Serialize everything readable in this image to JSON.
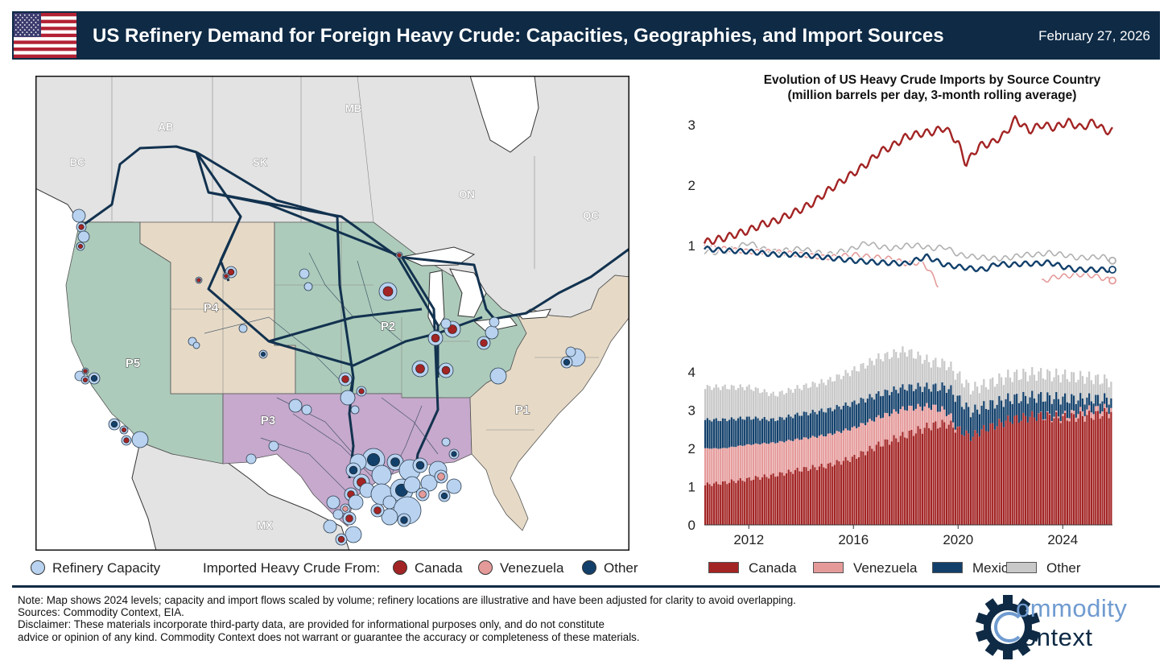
{
  "header": {
    "title": "US Refinery Demand for Foreign Heavy Crude: Capacities, Geographies, and Import Sources",
    "date": "February 27, 2026"
  },
  "map": {
    "region_labels": [
      "BC",
      "AB",
      "SK",
      "MB",
      "ON",
      "QC",
      "P1",
      "P2",
      "P3",
      "P4",
      "P5",
      "MX"
    ]
  },
  "map_legend": {
    "capacity": "Refinery Capacity",
    "imported_from": "Imported Heavy Crude From:",
    "canada": "Canada",
    "venezuela": "Venezuela",
    "other": "Other"
  },
  "colors": {
    "header_bg": "#0e2a45",
    "canada": "#a32424",
    "venezuela": "#e59a9a",
    "mexico": "#12406b",
    "other": "#c8c8c8",
    "refinery": "#b8d2f0",
    "padd_green": "#adcbbb",
    "padd_tan": "#e6dac7",
    "padd_purple": "#c6a9cc",
    "land_grey": "#e3e3e3"
  },
  "chart_data": [
    {
      "type": "line",
      "title": "Evolution of US Heavy Crude Imports by Source Country",
      "subtitle": "(million barrels per day, 3-month rolling average)",
      "x_range": [
        2010.3,
        2025.9
      ],
      "ylim": [
        0,
        3.2
      ],
      "yticks": [
        1,
        2,
        3
      ],
      "series": [
        {
          "name": "Canada",
          "x": [
            2010.3,
            2011,
            2012,
            2012.5,
            2013,
            2013.5,
            2014,
            2014.5,
            2015,
            2015.5,
            2016,
            2016.5,
            2017,
            2017.5,
            2018,
            2018.5,
            2019,
            2019.5,
            2020,
            2020.3,
            2020.8,
            2021.3,
            2021.8,
            2022.2,
            2022.7,
            2023.2,
            2023.7,
            2024.2,
            2024.7,
            2025.2,
            2025.6,
            2025.9
          ],
          "y": [
            1.05,
            1.12,
            1.25,
            1.35,
            1.4,
            1.5,
            1.6,
            1.72,
            1.9,
            2.05,
            2.2,
            2.35,
            2.55,
            2.65,
            2.8,
            2.85,
            2.88,
            2.95,
            2.7,
            2.35,
            2.65,
            2.7,
            2.85,
            3.1,
            2.9,
            3.0,
            2.95,
            3.05,
            2.95,
            3.05,
            2.9,
            2.9
          ]
        },
        {
          "name": "Venezuela",
          "x": [
            2010.3,
            2011,
            2012,
            2013,
            2014,
            2015,
            2016,
            2016.5,
            2017,
            2017.5,
            2018,
            2018.6,
            2018.9,
            2019.2,
            2023.2,
            2023.7,
            2024.2,
            2024.7,
            2025.2,
            2025.6,
            2025.9
          ],
          "y": [
            1.0,
            0.95,
            0.9,
            0.9,
            0.85,
            0.8,
            0.85,
            0.82,
            0.8,
            0.78,
            0.7,
            0.72,
            0.6,
            0.35,
            0.4,
            0.48,
            0.5,
            0.52,
            0.5,
            0.45,
            0.42
          ]
        },
        {
          "name": "Mexico",
          "x": [
            2010.3,
            2011,
            2012,
            2013,
            2014,
            2015,
            2016,
            2017,
            2018,
            2018.8,
            2019.5,
            2020,
            2020.5,
            2021,
            2021.5,
            2022,
            2022.5,
            2023,
            2023.5,
            2024,
            2024.5,
            2025,
            2025.5,
            2025.9
          ],
          "y": [
            0.95,
            0.92,
            0.9,
            0.85,
            0.85,
            0.8,
            0.75,
            0.72,
            0.7,
            0.82,
            0.68,
            0.65,
            0.62,
            0.6,
            0.7,
            0.68,
            0.7,
            0.7,
            0.72,
            0.65,
            0.6,
            0.6,
            0.6,
            0.6
          ]
        },
        {
          "name": "Other",
          "x": [
            2010.3,
            2011,
            2012,
            2012.5,
            2013,
            2014,
            2015,
            2016,
            2016.5,
            2017,
            2017.5,
            2018,
            2018.5,
            2019,
            2019.5,
            2020,
            2020.5,
            2021,
            2021.5,
            2022,
            2022.5,
            2023,
            2023.5,
            2024,
            2024.5,
            2025,
            2025.5,
            2025.9
          ],
          "y": [
            0.9,
            0.88,
            1.05,
            0.95,
            0.9,
            0.95,
            0.85,
            0.95,
            1.05,
            0.98,
            0.95,
            1.0,
            1.0,
            0.95,
            0.98,
            0.85,
            0.82,
            0.8,
            0.78,
            0.8,
            0.85,
            0.85,
            0.88,
            0.85,
            0.8,
            0.8,
            0.82,
            0.75
          ]
        }
      ]
    },
    {
      "type": "bar",
      "stacked": true,
      "x_range": [
        2010.3,
        2025.9
      ],
      "ylim": [
        0,
        4.6
      ],
      "yticks": [
        0,
        1,
        2,
        3,
        4
      ],
      "xticks": [
        2012,
        2016,
        2020,
        2024
      ],
      "xtick_labels": [
        "2012",
        "2016",
        "2020",
        "2024"
      ],
      "x": [
        2010.3,
        2011,
        2012,
        2013,
        2014,
        2015,
        2016,
        2017,
        2018,
        2019,
        2019.6,
        2020,
        2020.5,
        2021,
        2022,
        2023,
        2024,
        2025,
        2025.9
      ],
      "series": [
        {
          "name": "Canada",
          "values": [
            1.05,
            1.1,
            1.2,
            1.3,
            1.45,
            1.55,
            1.75,
            2.1,
            2.35,
            2.6,
            2.65,
            2.5,
            2.3,
            2.5,
            2.75,
            2.85,
            2.8,
            2.85,
            2.95
          ]
        },
        {
          "name": "Venezuela",
          "values": [
            0.95,
            0.9,
            0.9,
            0.85,
            0.8,
            0.8,
            0.78,
            0.72,
            0.7,
            0.5,
            0.3,
            0.0,
            0.0,
            0.0,
            0.0,
            0.0,
            0.05,
            0.15,
            0.1
          ]
        },
        {
          "name": "Mexico",
          "values": [
            0.75,
            0.75,
            0.7,
            0.6,
            0.65,
            0.65,
            0.65,
            0.6,
            0.55,
            0.5,
            0.65,
            0.8,
            0.65,
            0.6,
            0.55,
            0.5,
            0.45,
            0.3,
            0.25
          ]
        },
        {
          "name": "Other",
          "values": [
            0.85,
            0.85,
            0.8,
            0.65,
            0.7,
            0.75,
            0.85,
            0.95,
            0.95,
            0.65,
            0.6,
            0.6,
            0.6,
            0.55,
            0.6,
            0.6,
            0.6,
            0.55,
            0.45
          ]
        }
      ],
      "legend": [
        "Canada",
        "Venezuela",
        "Mexico",
        "Other"
      ],
      "legend_position": "bottom"
    }
  ],
  "footer": {
    "note": "Note: Map shows 2024 levels; capacity and import flows scaled by volume; refinery locations are illustrative and have been adjusted for clarity to avoid overlapping.",
    "sources": "Sources: Commodity Context, EIA.",
    "disclaimer1": "Disclaimer: These materials incorporate third-party data, are provided for informational purposes only, and do not constitute",
    "disclaimer2": "advice or opinion of any kind. Commodity Context does not warrant or guarantee the accuracy or completeness of these materials."
  },
  "logo": {
    "line1": "ommodity",
    "line2": "ontext",
    "icon": "gear-c-logo-icon"
  }
}
